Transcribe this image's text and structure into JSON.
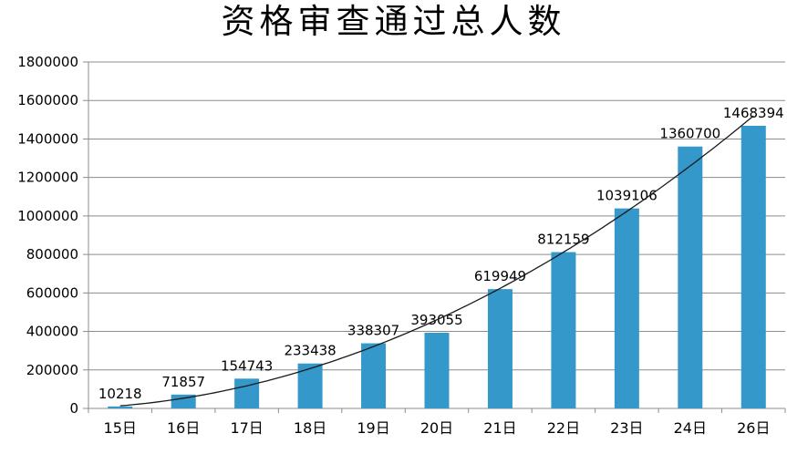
{
  "chart_data": {
    "type": "bar",
    "title": "资格审查通过总人数",
    "categories": [
      "15日",
      "16日",
      "17日",
      "18日",
      "19日",
      "20日",
      "21日",
      "22日",
      "23日",
      "24日",
      "26日"
    ],
    "values": [
      10218,
      71857,
      154743,
      233438,
      338307,
      393055,
      619949,
      812159,
      1039106,
      1360700,
      1468394
    ],
    "data_labels": [
      "10218",
      "71857",
      "154743",
      "233438",
      "338307",
      "393055",
      "619949",
      "812159",
      "1039106",
      "1360700",
      "1468394"
    ],
    "ylim": [
      0,
      1800000
    ],
    "ytick_step": 200000,
    "ytick_labels": [
      "0",
      "200000",
      "400000",
      "600000",
      "800000",
      "1000000",
      "1200000",
      "1400000",
      "1600000",
      "1800000"
    ],
    "xlabel": "",
    "ylabel": "",
    "grid": true,
    "legend_position": "none",
    "trendline": {
      "type": "power",
      "a": 13500,
      "b": 1.97
    },
    "colors": {
      "bar": "#3498CA",
      "gridline": "#8C8C8C",
      "axis": "#8C8C8C",
      "trendline": "#1a1a1a",
      "text": "#000000",
      "background": "#ffffff"
    }
  }
}
